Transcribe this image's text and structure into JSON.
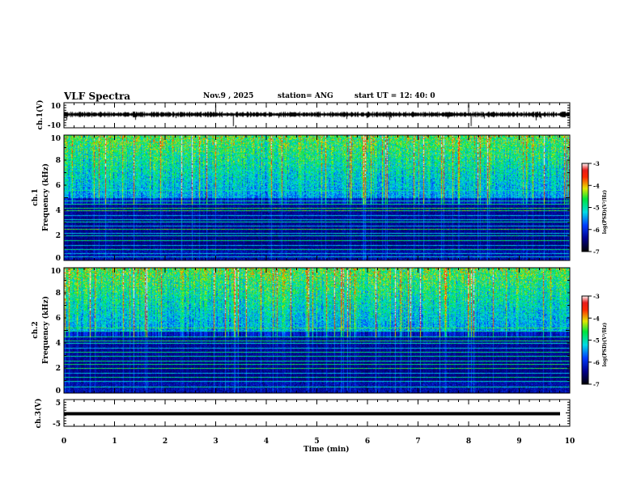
{
  "header": {
    "title": "VLF Spectra",
    "date": "Nov.9 , 2025",
    "station": "station= ANG",
    "start": "start UT =  12: 40: 0"
  },
  "chart_data": [
    {
      "type": "line",
      "name": "ch1-waveform",
      "ylabel": "ch.1(V)",
      "ylim": [
        -10,
        10
      ],
      "yticks": [
        "10",
        "-10"
      ],
      "baseline": 0,
      "noise_amplitude": 1,
      "spikes_at_min": [
        3.0,
        3.35,
        8.0,
        8.05
      ]
    },
    {
      "type": "heatmap",
      "name": "ch1-spectrogram",
      "ylabel": "ch.1\nFrequency (kHz)",
      "ylabel_top": "ch.1",
      "ylabel_main": "Frequency (kHz)",
      "ylim": [
        0,
        10
      ],
      "yticks": [
        "0",
        "2",
        "4",
        "6",
        "8",
        "10"
      ],
      "xlim": [
        0,
        10
      ],
      "colorbar": {
        "label": "log(PSD)(V²/Hz)",
        "range": [
          -7,
          -3
        ],
        "ticks": [
          "-3",
          "-4",
          "-5",
          "-6",
          "-7"
        ]
      },
      "lines_khz": [
        0.3,
        0.6,
        0.9,
        1.2,
        1.6,
        2.0,
        2.2,
        2.5,
        2.8,
        3.1,
        3.3,
        3.6,
        4.0,
        4.2,
        4.5,
        4.8,
        5.6
      ]
    },
    {
      "type": "heatmap",
      "name": "ch2-spectrogram",
      "ylabel_top": "ch.2",
      "ylabel_main": "Frequency (kHz)",
      "ylim": [
        0,
        10
      ],
      "yticks": [
        "0",
        "2",
        "4",
        "6",
        "8",
        "10"
      ],
      "xlim": [
        0,
        10
      ],
      "colorbar": {
        "label": "log(PSD)(V²/Hz)",
        "range": [
          -7,
          -3
        ],
        "ticks": [
          "-3",
          "-4",
          "-5",
          "-6",
          "-7"
        ]
      },
      "lines_khz": [
        0.5,
        1.0,
        1.3,
        1.6,
        2.0,
        2.3,
        2.6,
        3.0,
        3.3,
        3.6,
        4.0,
        4.2,
        4.5,
        5.0,
        5.2
      ]
    },
    {
      "type": "line",
      "name": "ch3-waveform",
      "ylabel": "ch.3(V)",
      "ylim": [
        -5,
        5
      ],
      "yticks": [
        "5",
        "-5"
      ],
      "baseline": 0
    }
  ],
  "xaxis": {
    "label": "Time (min)",
    "range": [
      0,
      10
    ],
    "ticks": [
      "0",
      "1",
      "2",
      "3",
      "4",
      "5",
      "6",
      "7",
      "8",
      "9",
      "10"
    ]
  }
}
